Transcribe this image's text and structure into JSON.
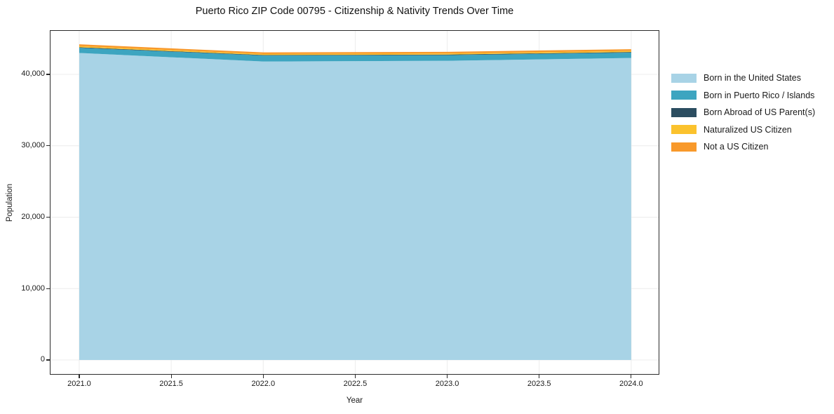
{
  "title": "Puerto Rico ZIP Code 00795 - Citizenship & Nativity Trends Over Time",
  "axes": {
    "x_label": "Year",
    "y_label": "Population",
    "x_tick_labels": [
      "2021.0",
      "2021.5",
      "2022.0",
      "2022.5",
      "2023.0",
      "2023.5",
      "2024.0"
    ],
    "y_tick_labels": [
      "0",
      "10,000",
      "20,000",
      "30,000",
      "40,000"
    ]
  },
  "legend": {
    "position": "right-outside",
    "items": [
      {
        "label": "Born in the United States",
        "color": "#A8D3E6"
      },
      {
        "label": "Born in Puerto Rico / Islands",
        "color": "#3DA5C0"
      },
      {
        "label": "Born Abroad of US Parent(s)",
        "color": "#2B4D60"
      },
      {
        "label": "Naturalized US Citizen",
        "color": "#FBC22D"
      },
      {
        "label": "Not a US Citizen",
        "color": "#F8992B"
      }
    ]
  },
  "chart_data": {
    "type": "area",
    "stacked": true,
    "title": "Puerto Rico ZIP Code 00795 - Citizenship & Nativity Trends Over Time",
    "xlabel": "Year",
    "ylabel": "Population",
    "x": [
      2021,
      2022,
      2023,
      2024
    ],
    "series": [
      {
        "name": "Born in the United States",
        "color": "#A8D3E6",
        "values": [
          43000,
          41800,
          41900,
          42300
        ]
      },
      {
        "name": "Born in Puerto Rico / Islands",
        "color": "#3DA5C0",
        "values": [
          720,
          840,
          790,
          750
        ]
      },
      {
        "name": "Born Abroad of US Parent(s)",
        "color": "#2B4D60",
        "values": [
          80,
          70,
          80,
          80
        ]
      },
      {
        "name": "Naturalized US Citizen",
        "color": "#FBC22D",
        "values": [
          150,
          140,
          150,
          150
        ]
      },
      {
        "name": "Not a US Citizen",
        "color": "#F8992B",
        "values": [
          260,
          230,
          240,
          250
        ]
      }
    ],
    "x_tick_values": [
      2021.0,
      2021.5,
      2022.0,
      2022.5,
      2023.0,
      2023.5,
      2024.0
    ],
    "y_tick_values": [
      0,
      10000,
      20000,
      30000,
      40000
    ],
    "xlim": [
      2020.84,
      2024.153
    ],
    "ylim": [
      -2065,
      46190
    ],
    "grid": true,
    "grid_color": "#ececec",
    "legend_position": "right-outside"
  }
}
